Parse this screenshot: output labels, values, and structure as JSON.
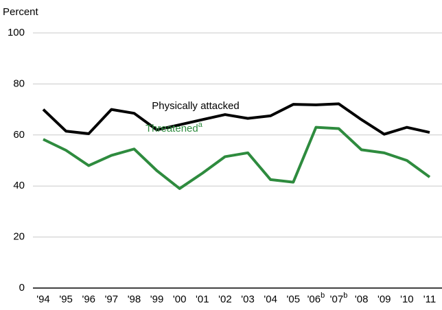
{
  "chart_data": {
    "type": "line",
    "y_label": "Percent",
    "categories": [
      "'94",
      "'95",
      "'96",
      "'97",
      "'98",
      "'99",
      "'00",
      "'01",
      "'02",
      "'03",
      "'04",
      "'05",
      "'06",
      "'07",
      "'08",
      "'09",
      "'10",
      "'11"
    ],
    "category_notes": [
      {
        "category": "'06",
        "text": "b"
      },
      {
        "category": "'07",
        "text": "b"
      }
    ],
    "series": [
      {
        "name": "Physically attacked",
        "color": "#000000",
        "values": [
          70,
          61.5,
          60.5,
          70,
          68.5,
          62,
          64,
          66,
          68,
          66.5,
          67.5,
          72,
          71.8,
          72.2,
          66,
          60.3,
          63,
          61
        ]
      },
      {
        "name": "Threatened",
        "note": "a",
        "color": "#2e8b3e",
        "values": [
          58.3,
          54,
          48,
          52,
          54.5,
          46,
          39,
          45,
          51.5,
          53,
          42.5,
          41.5,
          63,
          62.5,
          54.2,
          53,
          50,
          43.5
        ]
      }
    ],
    "ylim": [
      0,
      100
    ],
    "yticks": [
      0,
      20,
      40,
      60,
      80,
      100
    ],
    "grid": true
  }
}
